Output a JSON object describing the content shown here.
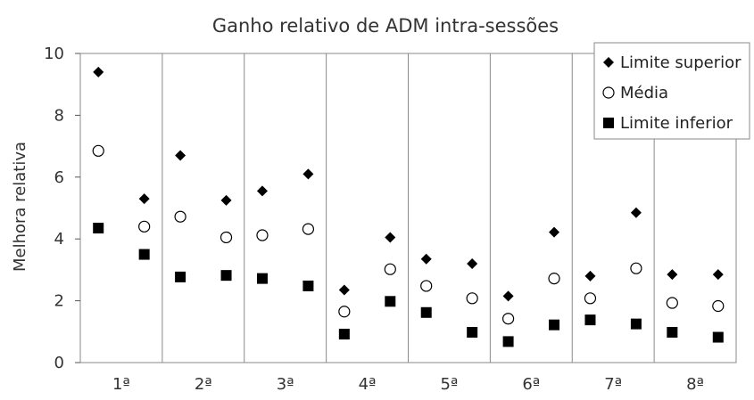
{
  "chart_data": {
    "type": "scatter",
    "title": "Ganho relativo de ADM intra-sessões",
    "xlabel": "",
    "ylabel": "Melhora relativa",
    "ylim": [
      0,
      10
    ],
    "yticks": [
      "0",
      "2",
      "4",
      "6",
      "8",
      "10"
    ],
    "categories": [
      "1ª",
      "2ª",
      "3ª",
      "4ª",
      "5ª",
      "6ª",
      "7ª",
      "8ª"
    ],
    "points_per_category": 2,
    "grid": "vertical separators between sessions",
    "legend": {
      "position": "top-right"
    },
    "series": [
      {
        "name": "Limite superior",
        "marker": "diamond",
        "color": "#000000",
        "values": [
          9.4,
          5.3,
          6.7,
          5.25,
          5.55,
          6.1,
          2.35,
          4.05,
          3.35,
          3.2,
          2.15,
          4.22,
          2.8,
          4.85,
          2.85,
          2.85
        ]
      },
      {
        "name": "Média",
        "marker": "circle-open",
        "color": "#000000",
        "values": [
          6.85,
          4.4,
          4.72,
          4.05,
          4.12,
          4.32,
          1.65,
          3.02,
          2.48,
          2.08,
          1.42,
          2.72,
          2.08,
          3.05,
          1.93,
          1.83
        ]
      },
      {
        "name": "Limite inferior",
        "marker": "square",
        "color": "#000000",
        "values": [
          4.35,
          3.5,
          2.77,
          2.82,
          2.72,
          2.48,
          0.92,
          1.98,
          1.62,
          0.98,
          0.68,
          1.22,
          1.38,
          1.25,
          0.98,
          0.82
        ]
      }
    ]
  }
}
